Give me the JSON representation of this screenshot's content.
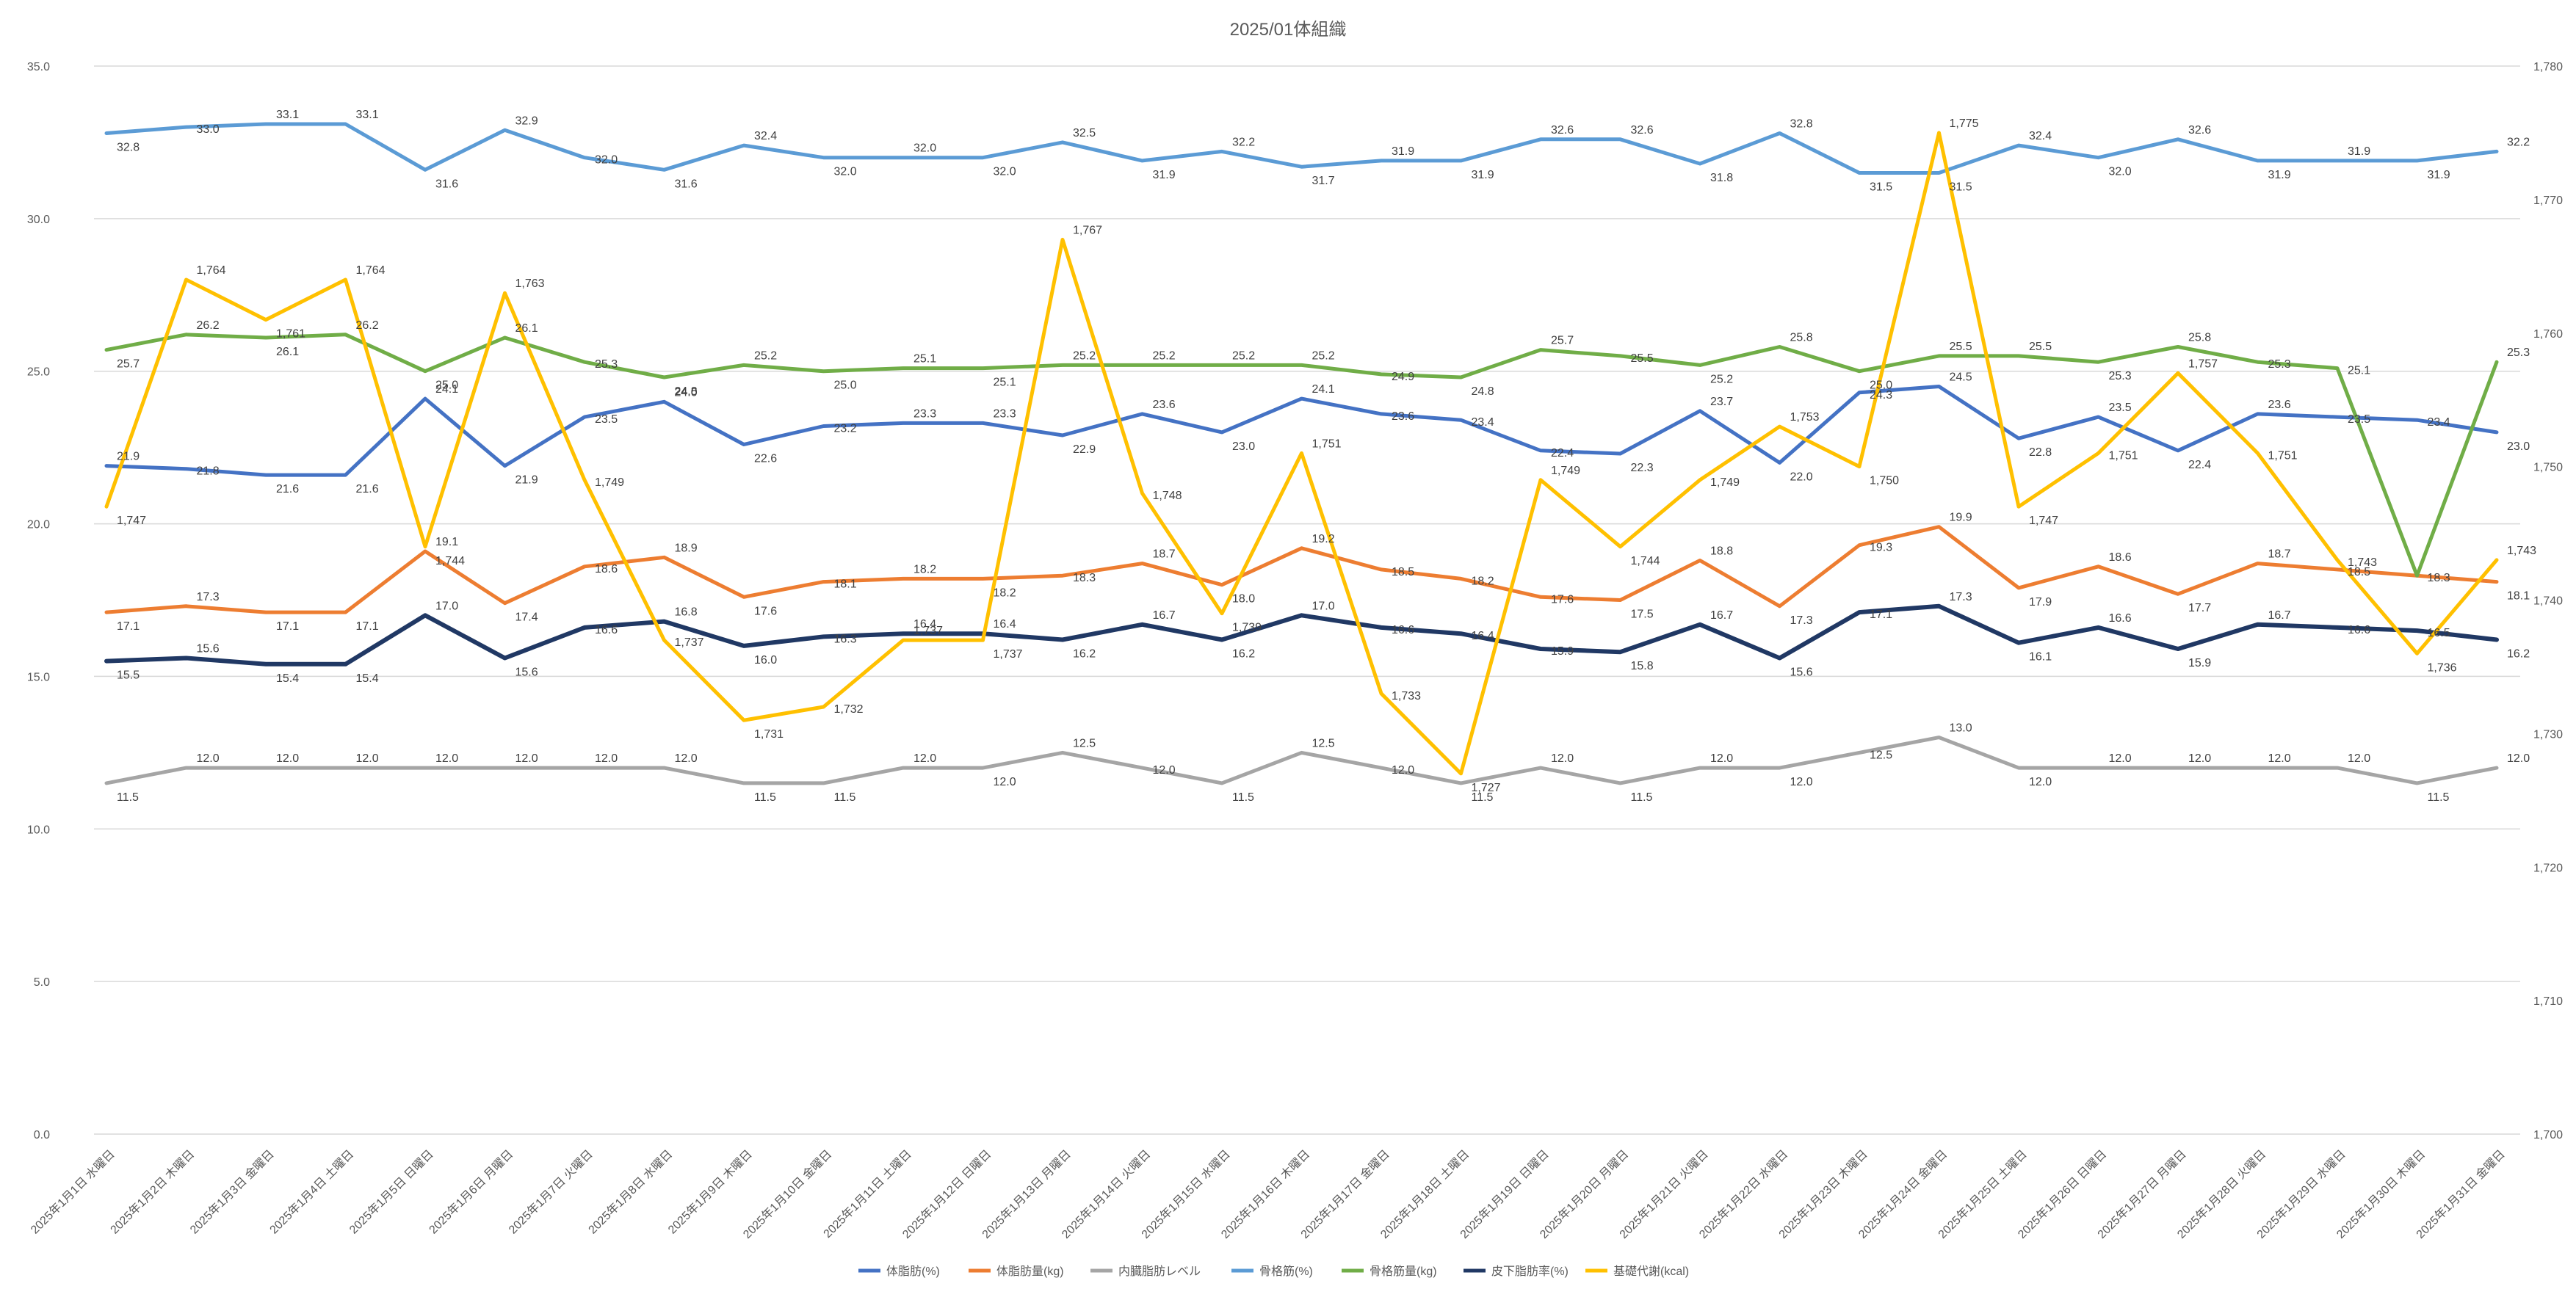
{
  "chart_data": {
    "type": "line",
    "title": "2025/01体組織",
    "categories": [
      "2025年1月1日 水曜日",
      "2025年1月2日 木曜日",
      "2025年1月3日 金曜日",
      "2025年1月4日 土曜日",
      "2025年1月5日 日曜日",
      "2025年1月6日 月曜日",
      "2025年1月7日 火曜日",
      "2025年1月8日 水曜日",
      "2025年1月9日 木曜日",
      "2025年1月10日 金曜日",
      "2025年1月11日 土曜日",
      "2025年1月12日 日曜日",
      "2025年1月13日 月曜日",
      "2025年1月14日 火曜日",
      "2025年1月15日 水曜日",
      "2025年1月16日 木曜日",
      "2025年1月17日 金曜日",
      "2025年1月18日 土曜日",
      "2025年1月19日 日曜日",
      "2025年1月20日 月曜日",
      "2025年1月21日 火曜日",
      "2025年1月22日 水曜日",
      "2025年1月23日 木曜日",
      "2025年1月24日 金曜日",
      "2025年1月25日 土曜日",
      "2025年1月26日 日曜日",
      "2025年1月27日 月曜日",
      "2025年1月28日 火曜日",
      "2025年1月29日 水曜日",
      "2025年1月30日 木曜日",
      "2025年1月31日 金曜日"
    ],
    "y_left": {
      "min": 0,
      "max": 35,
      "ticks": [
        "0.0",
        "5.0",
        "10.0",
        "15.0",
        "20.0",
        "25.0",
        "30.0",
        "35.0"
      ]
    },
    "y_right": {
      "min": 1700,
      "max": 1780,
      "ticks": [
        "1,700",
        "1,710",
        "1,720",
        "1,730",
        "1,740",
        "1,750",
        "1,760",
        "1,770",
        "1,780"
      ]
    },
    "grid": true,
    "legend_position": "bottom",
    "series": [
      {
        "name": "体脂肪(%)",
        "axis": "left",
        "color": "#4472C4",
        "width": 5,
        "values": [
          21.9,
          21.8,
          21.6,
          21.6,
          24.1,
          21.9,
          23.5,
          24.0,
          22.6,
          23.2,
          23.3,
          23.3,
          22.9,
          23.6,
          23.0,
          24.1,
          23.6,
          23.4,
          22.4,
          22.3,
          23.7,
          22.0,
          24.3,
          24.5,
          22.8,
          23.5,
          22.4,
          23.6,
          23.5,
          23.4,
          23.0
        ],
        "labels": [
          "21.9",
          "21.8",
          "21.6",
          "21.6",
          "24.1",
          "21.9",
          "23.5",
          "24.0",
          "22.6",
          "23.2",
          "23.3",
          "23.3",
          "22.9",
          "23.6",
          "23.0",
          "24.1",
          "23.6",
          "23.4",
          "22.4",
          "22.3",
          "23.7",
          "22.0",
          "24.3",
          "24.5",
          "22.8",
          "23.5",
          "22.4",
          "23.6",
          "23.5",
          "23.4",
          "23.0"
        ]
      },
      {
        "name": "体脂肪量(kg)",
        "axis": "left",
        "color": "#ED7D31",
        "width": 5,
        "values": [
          17.1,
          17.3,
          17.1,
          17.1,
          19.1,
          17.4,
          18.6,
          18.9,
          17.6,
          18.1,
          18.2,
          18.2,
          18.3,
          18.7,
          18.0,
          19.2,
          18.5,
          18.2,
          17.6,
          17.5,
          18.8,
          17.3,
          19.3,
          19.9,
          17.9,
          18.6,
          17.7,
          18.7,
          18.5,
          18.3,
          18.1
        ],
        "labels": [
          "17.1",
          "17.3",
          "17.1",
          "17.1",
          "19.1",
          "17.4",
          "18.6",
          "18.9",
          "17.6",
          "18.1",
          "18.2",
          "18.2",
          "18.3",
          "18.7",
          "18.0",
          "19.2",
          "18.5",
          "18.2",
          "17.6",
          "17.5",
          "18.8",
          "17.3",
          "19.3",
          "19.9",
          "17.9",
          "18.6",
          "17.7",
          "18.7",
          "18.5",
          "18.3",
          "18.1"
        ]
      },
      {
        "name": "内臓脂肪レベル",
        "axis": "left",
        "color": "#A5A5A5",
        "width": 5,
        "values": [
          11.5,
          12.0,
          12.0,
          12.0,
          12.0,
          12.0,
          12.0,
          12.0,
          11.5,
          11.5,
          12.0,
          12.0,
          12.5,
          12.0,
          11.5,
          12.5,
          12.0,
          11.5,
          12.0,
          11.5,
          12.0,
          12.0,
          12.5,
          13.0,
          12.0,
          12.0,
          12.0,
          12.0,
          12.0,
          11.5,
          12.0
        ],
        "labels": [
          "11.5",
          "12.0",
          "12.0",
          "12.0",
          "12.0",
          "12.0",
          "12.0",
          "12.0",
          "11.5",
          "11.5",
          "12.0",
          "12.0",
          "12.5",
          "12.0",
          "11.5",
          "12.5",
          "12.0",
          "11.5",
          "12.0",
          "11.5",
          "12.0",
          "12.0",
          "12.5",
          "13.0",
          "12.0",
          "12.0",
          "12.0",
          "12.0",
          "12.0",
          "11.5",
          "12.0"
        ]
      },
      {
        "name": "骨格筋(%)",
        "axis": "left",
        "color": "#5B9BD5",
        "width": 5,
        "values": [
          32.8,
          33.0,
          33.1,
          33.1,
          31.6,
          32.9,
          32.0,
          31.6,
          32.4,
          32.0,
          32.0,
          32.0,
          32.5,
          31.9,
          32.2,
          31.7,
          31.9,
          31.9,
          32.6,
          32.6,
          31.8,
          32.8,
          31.5,
          31.5,
          32.4,
          32.0,
          32.6,
          31.9,
          31.9,
          31.9,
          32.2
        ],
        "labels": [
          "32.8",
          "33.0",
          "33.1",
          "33.1",
          "31.6",
          "32.9",
          "32.0",
          "31.6",
          "32.4",
          "32.0",
          "32.0",
          "32.0",
          "32.5",
          "31.9",
          "32.2",
          "31.7",
          "31.9",
          "31.9",
          "32.6",
          "32.6",
          "31.8",
          "32.8",
          "31.5",
          "31.5",
          "32.4",
          "32.0",
          "32.6",
          "31.9",
          "31.9",
          "31.9",
          "32.2"
        ]
      },
      {
        "name": "骨格筋量(kg)",
        "axis": "left",
        "color": "#70AD47",
        "width": 5,
        "values": [
          25.7,
          26.2,
          26.1,
          26.2,
          25.0,
          26.1,
          25.3,
          24.8,
          25.2,
          25.0,
          25.1,
          25.1,
          25.2,
          25.2,
          25.2,
          25.2,
          24.9,
          24.8,
          25.7,
          25.5,
          25.2,
          25.8,
          25.0,
          25.5,
          25.5,
          25.3,
          25.8,
          25.3,
          25.1,
          18.3,
          25.3
        ],
        "labels": [
          "25.7",
          "26.2",
          "26.1",
          "26.2",
          "25.0",
          "26.1",
          "25.3",
          "24.8",
          "25.2",
          "25.0",
          "25.1",
          "25.1",
          "25.2",
          "25.2",
          "25.2",
          "25.2",
          "24.9",
          "24.8",
          "25.7",
          "25.5",
          "25.2",
          "25.8",
          "25.0",
          "25.5",
          "25.5",
          "25.3",
          "25.8",
          "25.3",
          "25.1",
          "",
          "25.3"
        ]
      },
      {
        "name": "皮下脂肪率(%)",
        "axis": "left",
        "color": "#203864",
        "width": 6,
        "values": [
          15.5,
          15.6,
          15.4,
          15.4,
          17.0,
          15.6,
          16.6,
          16.8,
          16.0,
          16.3,
          16.4,
          16.4,
          16.2,
          16.7,
          16.2,
          17.0,
          16.6,
          16.4,
          15.9,
          15.8,
          16.7,
          15.6,
          17.1,
          17.3,
          16.1,
          16.6,
          15.9,
          16.7,
          16.6,
          16.5,
          16.2
        ],
        "labels": [
          "15.5",
          "15.6",
          "15.4",
          "15.4",
          "17.0",
          "15.6",
          "16.6",
          "16.8",
          "16.0",
          "16.3",
          "16.4",
          "16.4",
          "16.2",
          "16.7",
          "16.2",
          "17.0",
          "16.6",
          "16.4",
          "15.9",
          "15.8",
          "16.7",
          "15.6",
          "17.1",
          "17.3",
          "16.1",
          "16.6",
          "15.9",
          "16.7",
          "16.6",
          "16.5",
          "16.2"
        ]
      },
      {
        "name": "基礎代謝(kcal)",
        "axis": "right",
        "color": "#FFC000",
        "width": 5,
        "values": [
          1747,
          1764,
          1761,
          1764,
          1744,
          1763,
          1749,
          1737,
          1731,
          1732,
          1737,
          1737,
          1767,
          1748,
          1739,
          1751,
          1733,
          1727,
          1749,
          1744,
          1749,
          1753,
          1750,
          1775,
          1747,
          1751,
          1757,
          1751,
          1743,
          1736,
          1743
        ],
        "labels": [
          "1,747",
          "1,764",
          "1,761",
          "1,764",
          "1,744",
          "1,763",
          "1,749",
          "1,737",
          "1,731",
          "1,732",
          "1,737",
          "1,737",
          "1,767",
          "1,748",
          "1,739",
          "1,751",
          "1,733",
          "1,727",
          "1,749",
          "1,744",
          "1,749",
          "1,753",
          "1,750",
          "1,775",
          "1,747",
          "1,751",
          "1,757",
          "1,751",
          "1,743",
          "1,736",
          "1,743"
        ]
      }
    ]
  }
}
